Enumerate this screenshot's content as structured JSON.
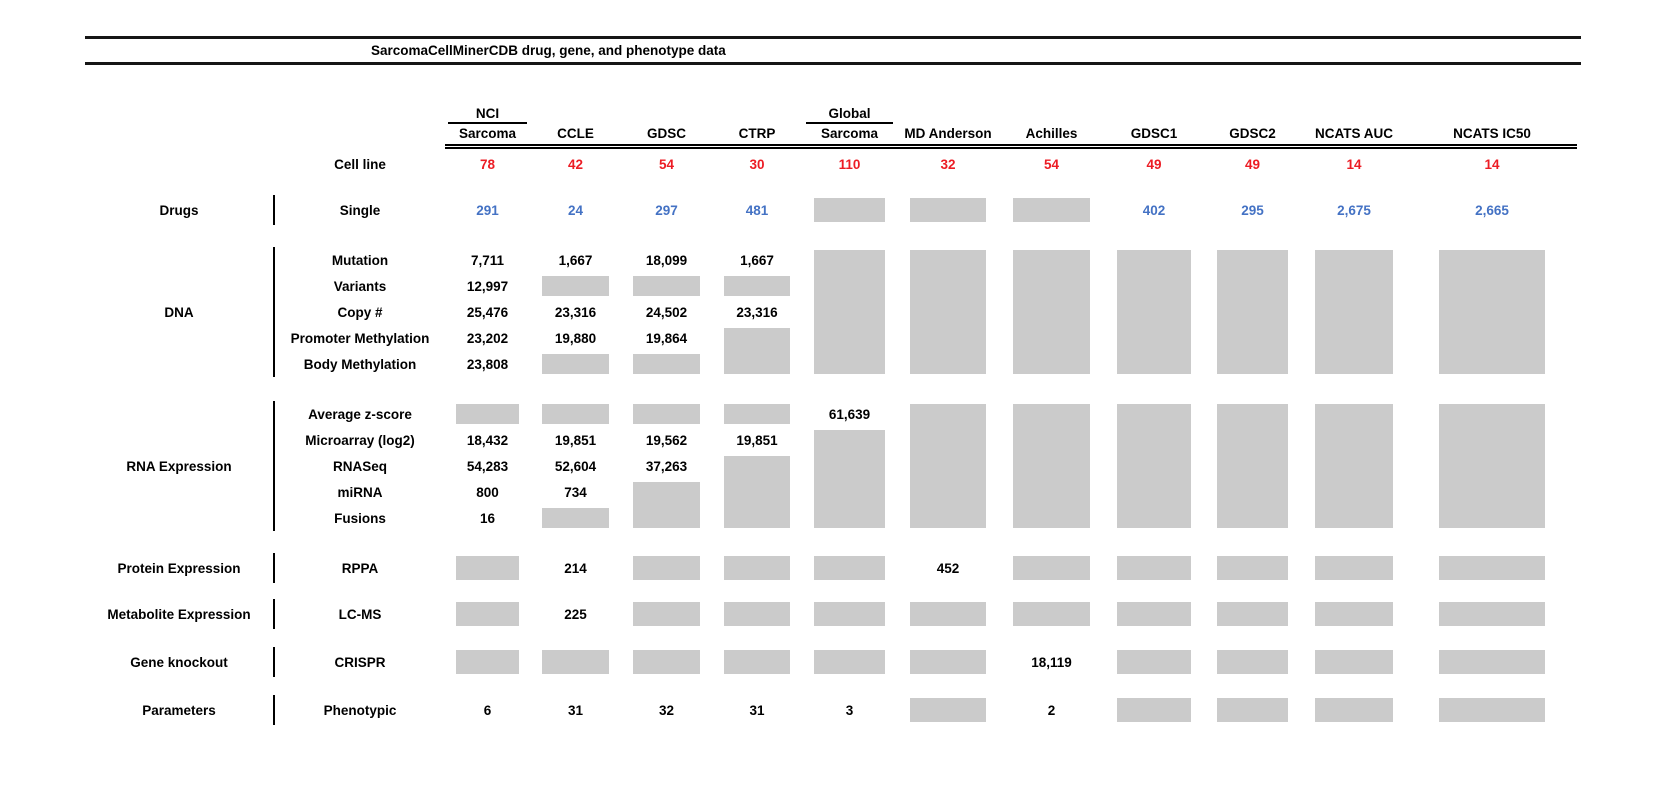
{
  "chart_data": {
    "type": "table",
    "title": "SarcomaCellMinerCDB drug, gene, and phenotype data",
    "cell_line_label": "Cell line",
    "legend_hint": "gray box = no data for that source",
    "colors": {
      "count_red": "#EC1C24",
      "drug_blue": "#4472C4",
      "missing_gray": "#CBCBCB",
      "line_black": "#000000"
    },
    "columns": [
      {
        "id": "nci-sarcoma",
        "top": "NCI",
        "label": "Sarcoma",
        "count": "78"
      },
      {
        "id": "ccle",
        "label": "CCLE",
        "count": "42"
      },
      {
        "id": "gdsc",
        "label": "GDSC",
        "count": "54"
      },
      {
        "id": "ctrp",
        "label": "CTRP",
        "count": "30"
      },
      {
        "id": "global-sarcoma",
        "top": "Global",
        "label": "Sarcoma",
        "count": "110"
      },
      {
        "id": "md-anderson",
        "label": "MD Anderson",
        "count": "32"
      },
      {
        "id": "achilles",
        "label": "Achilles",
        "count": "54"
      },
      {
        "id": "gdsc1",
        "label": "GDSC1",
        "count": "49"
      },
      {
        "id": "gdsc2",
        "label": "GDSC2",
        "count": "49"
      },
      {
        "id": "ncats-auc",
        "label": "NCATS AUC",
        "count": "14"
      },
      {
        "id": "ncats-ic50",
        "label": "NCATS IC50",
        "count": "14"
      }
    ],
    "sections": [
      {
        "group": "Drugs",
        "rows": [
          {
            "label": "Single",
            "color": "blue",
            "cells": [
              "291",
              "24",
              "297",
              "481",
              {
                "g": 1
              },
              {
                "g": 1
              },
              {
                "g": 1
              },
              "402",
              "295",
              "2,675",
              "2,665"
            ]
          }
        ]
      },
      {
        "group": "DNA",
        "rows": [
          {
            "label": "Mutation",
            "cells": [
              "7,711",
              "1,667",
              "18,099",
              "1,667",
              {
                "g": 5
              },
              {
                "g": 5
              },
              {
                "g": 5
              },
              {
                "g": 5
              },
              {
                "g": 5
              },
              {
                "g": 5
              },
              {
                "g": 5
              }
            ]
          },
          {
            "label": "Variants",
            "cells": [
              "12,997",
              {
                "g": 1
              },
              {
                "g": 1
              },
              {
                "g": 1
              },
              null,
              null,
              null,
              null,
              null,
              null,
              null
            ]
          },
          {
            "label": "Copy #",
            "cells": [
              "25,476",
              "23,316",
              "24,502",
              "23,316",
              null,
              null,
              null,
              null,
              null,
              null,
              null
            ]
          },
          {
            "label": "Promoter Methylation",
            "cells": [
              "23,202",
              "19,880",
              "19,864",
              {
                "g": 2
              },
              null,
              null,
              null,
              null,
              null,
              null,
              null
            ]
          },
          {
            "label": "Body Methylation",
            "cells": [
              "23,808",
              {
                "g": 1
              },
              {
                "g": 1
              },
              null,
              null,
              null,
              null,
              null,
              null,
              null,
              null
            ]
          }
        ]
      },
      {
        "group": "RNA Expression",
        "rows": [
          {
            "label": "Average z-score",
            "cells": [
              {
                "g": 1
              },
              {
                "g": 1
              },
              {
                "g": 1
              },
              {
                "g": 1
              },
              "61,639",
              {
                "g": 5
              },
              {
                "g": 5
              },
              {
                "g": 5
              },
              {
                "g": 5
              },
              {
                "g": 5
              },
              {
                "g": 5
              }
            ]
          },
          {
            "label": "Microarray (log2)",
            "cells": [
              "18,432",
              "19,851",
              "19,562",
              "19,851",
              {
                "g": 4
              },
              null,
              null,
              null,
              null,
              null,
              null
            ]
          },
          {
            "label": "RNASeq",
            "cells": [
              "54,283",
              "52,604",
              "37,263",
              {
                "g": 3
              },
              null,
              null,
              null,
              null,
              null,
              null,
              null
            ]
          },
          {
            "label": "miRNA",
            "cells": [
              "800",
              "734",
              {
                "g": 2
              },
              null,
              null,
              null,
              null,
              null,
              null,
              null,
              null
            ]
          },
          {
            "label": "Fusions",
            "cells": [
              "16",
              {
                "g": 1
              },
              null,
              null,
              null,
              null,
              null,
              null,
              null,
              null,
              null
            ]
          }
        ]
      },
      {
        "group": "Protein Expression",
        "rows": [
          {
            "label": "RPPA",
            "cells": [
              {
                "g": 1
              },
              "214",
              {
                "g": 1
              },
              {
                "g": 1
              },
              {
                "g": 1
              },
              "452",
              {
                "g": 1
              },
              {
                "g": 1
              },
              {
                "g": 1
              },
              {
                "g": 1
              },
              {
                "g": 1
              }
            ]
          }
        ]
      },
      {
        "group": "Metabolite Expression",
        "rows": [
          {
            "label": "LC-MS",
            "cells": [
              {
                "g": 1
              },
              "225",
              {
                "g": 1
              },
              {
                "g": 1
              },
              {
                "g": 1
              },
              {
                "g": 1
              },
              {
                "g": 1
              },
              {
                "g": 1
              },
              {
                "g": 1
              },
              {
                "g": 1
              },
              {
                "g": 1
              }
            ]
          }
        ]
      },
      {
        "group": "Gene knockout",
        "rows": [
          {
            "label": "CRISPR",
            "cells": [
              {
                "g": 1
              },
              {
                "g": 1
              },
              {
                "g": 1
              },
              {
                "g": 1
              },
              {
                "g": 1
              },
              {
                "g": 1
              },
              "18,119",
              {
                "g": 1
              },
              {
                "g": 1
              },
              {
                "g": 1
              },
              {
                "g": 1
              }
            ]
          }
        ]
      },
      {
        "group": "Parameters",
        "rows": [
          {
            "label": "Phenotypic",
            "cells": [
              "6",
              "31",
              "32",
              "31",
              "3",
              {
                "g": 1
              },
              "2",
              {
                "g": 1
              },
              {
                "g": 1
              },
              {
                "g": 1
              },
              {
                "g": 1
              }
            ]
          }
        ]
      }
    ]
  }
}
